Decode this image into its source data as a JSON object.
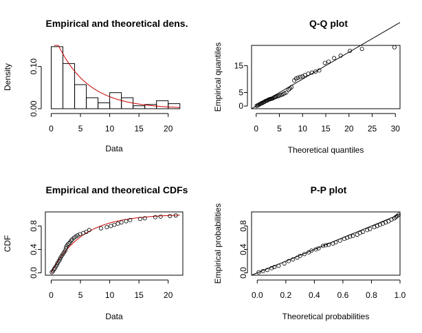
{
  "figure": {
    "background": "#ffffff"
  },
  "chart_data": [
    {
      "type": "histogram",
      "panel": "density",
      "title": "Empirical and theoretical dens.",
      "xlabel": "Data",
      "ylabel": "Density",
      "xlim": [
        -1,
        22.5
      ],
      "ylim": [
        0,
        0.15
      ],
      "xticks": [
        0,
        5,
        10,
        15,
        20
      ],
      "yticks": [
        0.0,
        0.1
      ],
      "ytick_labels": [
        "0.00",
        "0.10"
      ],
      "bins": [
        {
          "from": 0,
          "to": 2,
          "density": 0.147
        },
        {
          "from": 2,
          "to": 4,
          "density": 0.107
        },
        {
          "from": 4,
          "to": 6,
          "density": 0.057
        },
        {
          "from": 6,
          "to": 8,
          "density": 0.026
        },
        {
          "from": 8,
          "to": 10,
          "density": 0.014
        },
        {
          "from": 10,
          "to": 12,
          "density": 0.038
        },
        {
          "from": 12,
          "to": 14,
          "density": 0.026
        },
        {
          "from": 14,
          "to": 16,
          "density": 0.007
        },
        {
          "from": 16,
          "to": 18,
          "density": 0.01
        },
        {
          "from": 18,
          "to": 20,
          "density": 0.019
        },
        {
          "from": 20,
          "to": 22,
          "density": 0.012
        }
      ],
      "fit_curve": {
        "distribution": "exponential",
        "rate": 0.19,
        "color": "#cc0000",
        "x_from": 0.5,
        "x_to": 22
      }
    },
    {
      "type": "scatter",
      "panel": "qq",
      "title": "Q-Q plot",
      "xlabel": "Theoretical quantiles",
      "ylabel": "Empirical quantiles",
      "xlim": [
        -1,
        31
      ],
      "ylim": [
        -1,
        22.5
      ],
      "xticks": [
        0,
        5,
        10,
        15,
        20,
        25,
        30
      ],
      "yticks": [
        0,
        5,
        15
      ],
      "reference_line": [
        [
          -1,
          -1
        ],
        [
          31,
          31
        ]
      ],
      "points": [
        [
          0.1,
          0.1
        ],
        [
          0.3,
          0.2
        ],
        [
          0.5,
          0.4
        ],
        [
          0.7,
          0.6
        ],
        [
          0.9,
          0.8
        ],
        [
          1.1,
          1.0
        ],
        [
          1.3,
          1.1
        ],
        [
          1.5,
          1.3
        ],
        [
          1.7,
          1.5
        ],
        [
          1.9,
          1.7
        ],
        [
          2.1,
          1.9
        ],
        [
          2.3,
          2.0
        ],
        [
          2.5,
          2.2
        ],
        [
          2.7,
          2.4
        ],
        [
          2.9,
          2.5
        ],
        [
          3.1,
          2.6
        ],
        [
          3.3,
          2.7
        ],
        [
          3.5,
          2.8
        ],
        [
          3.7,
          3.0
        ],
        [
          3.9,
          3.2
        ],
        [
          4.1,
          3.3
        ],
        [
          4.3,
          3.5
        ],
        [
          4.6,
          3.6
        ],
        [
          4.9,
          3.8
        ],
        [
          5.2,
          4.0
        ],
        [
          5.5,
          4.2
        ],
        [
          5.8,
          4.4
        ],
        [
          6.1,
          4.7
        ],
        [
          6.5,
          5.0
        ],
        [
          7.0,
          6.1
        ],
        [
          7.3,
          6.5
        ],
        [
          7.6,
          7.0
        ],
        [
          8.2,
          9.5
        ],
        [
          8.6,
          10.2
        ],
        [
          9.0,
          10.5
        ],
        [
          9.5,
          10.8
        ],
        [
          10.0,
          11.0
        ],
        [
          10.5,
          11.5
        ],
        [
          11.2,
          12.0
        ],
        [
          12.0,
          12.4
        ],
        [
          12.8,
          12.8
        ],
        [
          13.6,
          13.2
        ],
        [
          14.8,
          16.0
        ],
        [
          15.6,
          16.5
        ],
        [
          16.8,
          17.8
        ],
        [
          18.2,
          18.7
        ],
        [
          20.2,
          20.5
        ],
        [
          22.8,
          21.2
        ],
        [
          29.8,
          21.8
        ]
      ]
    },
    {
      "type": "line",
      "panel": "cdf",
      "title": "Empirical and theoretical CDFs",
      "xlabel": "Data",
      "ylabel": "CDF",
      "xlim": [
        -1,
        22.5
      ],
      "ylim": [
        -0.04,
        1.04
      ],
      "xticks": [
        0,
        5,
        10,
        15,
        20
      ],
      "yticks": [
        0.0,
        0.4,
        0.8
      ],
      "ytick_labels": [
        "0.0",
        "0.4",
        "0.8"
      ],
      "fit_curve": {
        "distribution": "exponential",
        "rate": 0.19,
        "color": "#cc0000",
        "x_from": 0,
        "x_to": 22
      },
      "points": [
        [
          0.1,
          0.01
        ],
        [
          0.3,
          0.03
        ],
        [
          0.5,
          0.06
        ],
        [
          0.6,
          0.08
        ],
        [
          0.8,
          0.11
        ],
        [
          1.0,
          0.14
        ],
        [
          1.1,
          0.17
        ],
        [
          1.3,
          0.2
        ],
        [
          1.5,
          0.23
        ],
        [
          1.6,
          0.26
        ],
        [
          1.8,
          0.29
        ],
        [
          2.0,
          0.32
        ],
        [
          2.2,
          0.35
        ],
        [
          2.4,
          0.38
        ],
        [
          2.5,
          0.42
        ],
        [
          2.6,
          0.45
        ],
        [
          2.8,
          0.48
        ],
        [
          3.0,
          0.5
        ],
        [
          3.2,
          0.52
        ],
        [
          3.4,
          0.55
        ],
        [
          3.6,
          0.57
        ],
        [
          3.9,
          0.6
        ],
        [
          4.2,
          0.62
        ],
        [
          4.5,
          0.64
        ],
        [
          4.9,
          0.66
        ],
        [
          5.5,
          0.68
        ],
        [
          6.0,
          0.7
        ],
        [
          6.5,
          0.73
        ],
        [
          8.5,
          0.76
        ],
        [
          9.5,
          0.78
        ],
        [
          10.2,
          0.8
        ],
        [
          10.8,
          0.82
        ],
        [
          11.4,
          0.84
        ],
        [
          12.0,
          0.86
        ],
        [
          12.8,
          0.88
        ],
        [
          13.5,
          0.9
        ],
        [
          15.2,
          0.92
        ],
        [
          16.0,
          0.93
        ],
        [
          17.8,
          0.95
        ],
        [
          18.7,
          0.96
        ],
        [
          20.3,
          0.97
        ],
        [
          21.3,
          0.98
        ]
      ]
    },
    {
      "type": "scatter",
      "panel": "pp",
      "title": "P-P plot",
      "xlabel": "Theoretical probabilities",
      "ylabel": "Empirical probabilities",
      "xlim": [
        -0.04,
        1.0
      ],
      "ylim": [
        -0.04,
        1.04
      ],
      "xticks": [
        0.0,
        0.2,
        0.4,
        0.6,
        0.8,
        1.0
      ],
      "xtick_labels": [
        "0.0",
        "0.2",
        "0.4",
        "0.6",
        "0.8",
        "1.0"
      ],
      "yticks": [
        0.0,
        0.4,
        0.8
      ],
      "ytick_labels": [
        "0.0",
        "0.4",
        "0.8"
      ],
      "reference_line": [
        [
          -0.04,
          -0.04
        ],
        [
          1.0,
          1.0
        ]
      ],
      "points": [
        [
          0.01,
          0.01
        ],
        [
          0.04,
          0.03
        ],
        [
          0.07,
          0.05
        ],
        [
          0.1,
          0.08
        ],
        [
          0.12,
          0.1
        ],
        [
          0.15,
          0.12
        ],
        [
          0.19,
          0.16
        ],
        [
          0.22,
          0.2
        ],
        [
          0.25,
          0.23
        ],
        [
          0.28,
          0.26
        ],
        [
          0.3,
          0.29
        ],
        [
          0.33,
          0.32
        ],
        [
          0.36,
          0.35
        ],
        [
          0.38,
          0.38
        ],
        [
          0.41,
          0.4
        ],
        [
          0.43,
          0.42
        ],
        [
          0.46,
          0.46
        ],
        [
          0.48,
          0.47
        ],
        [
          0.5,
          0.48
        ],
        [
          0.53,
          0.5
        ],
        [
          0.55,
          0.52
        ],
        [
          0.58,
          0.55
        ],
        [
          0.61,
          0.58
        ],
        [
          0.63,
          0.6
        ],
        [
          0.65,
          0.62
        ],
        [
          0.67,
          0.63
        ],
        [
          0.7,
          0.65
        ],
        [
          0.72,
          0.68
        ],
        [
          0.74,
          0.7
        ],
        [
          0.77,
          0.73
        ],
        [
          0.79,
          0.75
        ],
        [
          0.82,
          0.78
        ],
        [
          0.84,
          0.8
        ],
        [
          0.86,
          0.82
        ],
        [
          0.88,
          0.84
        ],
        [
          0.9,
          0.86
        ],
        [
          0.92,
          0.88
        ],
        [
          0.94,
          0.91
        ],
        [
          0.96,
          0.93
        ],
        [
          0.97,
          0.95
        ],
        [
          0.98,
          0.97
        ],
        [
          0.99,
          0.99
        ]
      ]
    }
  ]
}
